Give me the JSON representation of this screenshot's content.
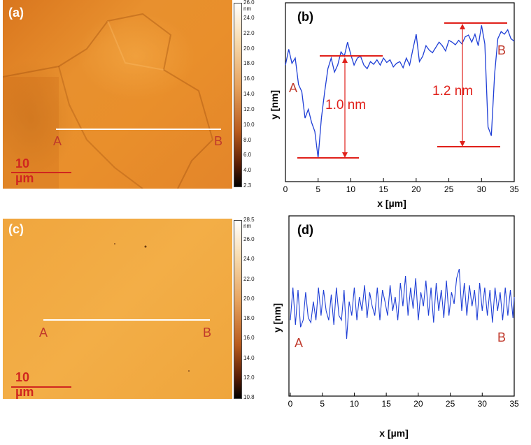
{
  "panels": {
    "a": {
      "tag": "(a)",
      "point_a": "A",
      "point_b": "B",
      "scale": "10 µm",
      "colorbar_ticks": [
        "26.0 nm",
        "24.0",
        "22.0",
        "20.0",
        "18.0",
        "16.0",
        "14.0",
        "12.0",
        "10.0",
        "8.0",
        "6.0",
        "4.0",
        "2.3"
      ]
    },
    "c": {
      "tag": "(c)",
      "point_a": "A",
      "point_b": "B",
      "scale": "10 µm",
      "colorbar_ticks": [
        "28.5 nm",
        "26.0",
        "24.0",
        "22.0",
        "20.0",
        "18.0",
        "16.0",
        "14.0",
        "12.0",
        "10.8"
      ]
    }
  },
  "chart_data": [
    {
      "type": "line",
      "tag": "(b)",
      "xlabel": "x [µm]",
      "ylabel": "y [nm]",
      "xlim": [
        0,
        35
      ],
      "xticks": [
        0,
        5,
        10,
        15,
        20,
        25,
        30,
        35
      ],
      "point_a": "A",
      "point_b": "B",
      "annotations": [
        "1.0 nm",
        "1.2 nm"
      ],
      "line_color": "#1f3fd6",
      "annotation_color": "#e0201a",
      "series": [
        {
          "x": [
            0,
            0.5,
            1,
            1.5,
            2,
            2.5,
            3,
            3.5,
            4,
            4.5,
            5,
            5.5,
            6,
            6.5,
            7,
            7.5,
            8,
            8.5,
            9,
            9.5,
            10,
            10.5,
            11,
            11.5,
            12,
            12.5,
            13,
            13.5,
            14,
            14.5,
            15,
            15.5,
            16,
            16.5,
            17,
            17.5,
            18,
            18.5,
            19,
            19.5,
            20,
            20.5,
            21,
            21.5,
            22,
            22.5,
            23,
            23.5,
            24,
            24.5,
            25,
            25.5,
            26,
            26.5,
            27,
            27.5,
            28,
            28.5,
            29,
            29.5,
            30,
            30.5,
            31,
            31.5,
            32,
            32.5,
            33,
            33.5,
            34,
            34.5,
            35
          ],
          "values": [
            0.7,
            0.88,
            0.72,
            0.78,
            0.48,
            0.4,
            0.1,
            0.2,
            0.05,
            -0.05,
            -0.35,
            0.1,
            0.4,
            0.66,
            0.78,
            0.62,
            0.7,
            0.85,
            0.8,
            0.96,
            0.82,
            0.7,
            0.78,
            0.8,
            0.7,
            0.66,
            0.74,
            0.71,
            0.76,
            0.7,
            0.78,
            0.73,
            0.76,
            0.68,
            0.72,
            0.74,
            0.67,
            0.78,
            0.7,
            0.88,
            1.05,
            0.74,
            0.8,
            0.92,
            0.87,
            0.84,
            0.9,
            0.96,
            0.92,
            0.86,
            0.98,
            0.96,
            0.93,
            0.98,
            0.94,
            1.02,
            1.04,
            0.96,
            1.05,
            0.92,
            1.15,
            0.94,
            0.0,
            -0.1,
            0.6,
            1.0,
            1.08,
            1.05,
            1.1,
            1.0,
            0.97
          ]
        }
      ]
    },
    {
      "type": "line",
      "tag": "(d)",
      "xlabel": "x [µm]",
      "ylabel": "y [nm]",
      "xlim": [
        0,
        35
      ],
      "xticks": [
        0,
        5,
        10,
        15,
        20,
        25,
        30,
        35
      ],
      "point_a": "A",
      "point_b": "B",
      "line_color": "#1f3fd6",
      "series": [
        {
          "x": [
            0,
            0.4,
            0.8,
            1.2,
            1.6,
            2,
            2.4,
            2.8,
            3.2,
            3.6,
            4,
            4.4,
            4.8,
            5.2,
            5.6,
            6,
            6.4,
            6.8,
            7.2,
            7.6,
            8,
            8.4,
            8.8,
            9.2,
            9.6,
            10,
            10.4,
            10.8,
            11.2,
            11.6,
            12,
            12.4,
            12.8,
            13.2,
            13.6,
            14,
            14.4,
            14.8,
            15.2,
            15.6,
            16,
            16.4,
            16.8,
            17.2,
            17.6,
            18,
            18.4,
            18.8,
            19.2,
            19.6,
            20,
            20.4,
            20.8,
            21.2,
            21.6,
            22,
            22.4,
            22.8,
            23.2,
            23.6,
            24,
            24.4,
            24.8,
            25.2,
            25.6,
            26,
            26.4,
            26.8,
            27.2,
            27.6,
            28,
            28.4,
            28.8,
            29.2,
            29.6,
            30,
            30.4,
            30.8,
            31.2,
            31.6,
            32,
            32.4,
            32.8,
            33.2,
            33.6,
            34,
            34.4,
            34.8,
            35
          ],
          "values": [
            0.2,
            0.9,
            0.1,
            0.85,
            0.05,
            0.2,
            0.8,
            0.25,
            0.15,
            0.6,
            0.2,
            0.9,
            0.3,
            0.85,
            0.4,
            0.2,
            0.75,
            0.1,
            0.9,
            0.3,
            0.2,
            0.85,
            -0.2,
            0.6,
            0.3,
            0.9,
            0.2,
            0.7,
            0.4,
            0.95,
            0.25,
            0.8,
            0.5,
            0.3,
            0.9,
            0.2,
            0.85,
            0.6,
            0.3,
            0.95,
            0.4,
            0.7,
            0.2,
            1.0,
            0.5,
            1.15,
            0.3,
            0.9,
            0.45,
            1.1,
            0.2,
            0.8,
            0.5,
            1.05,
            0.3,
            0.9,
            0.15,
            1.0,
            0.4,
            0.85,
            0.25,
            1.05,
            0.3,
            0.8,
            0.55,
            1.1,
            1.3,
            0.4,
            1.0,
            0.3,
            0.95,
            0.5,
            0.85,
            0.2,
            1.0,
            0.4,
            0.9,
            0.3,
            0.85,
            0.15,
            0.9,
            0.4,
            0.8,
            0.2,
            0.9,
            0.3,
            0.85,
            0.25,
            0.7
          ]
        }
      ]
    }
  ]
}
